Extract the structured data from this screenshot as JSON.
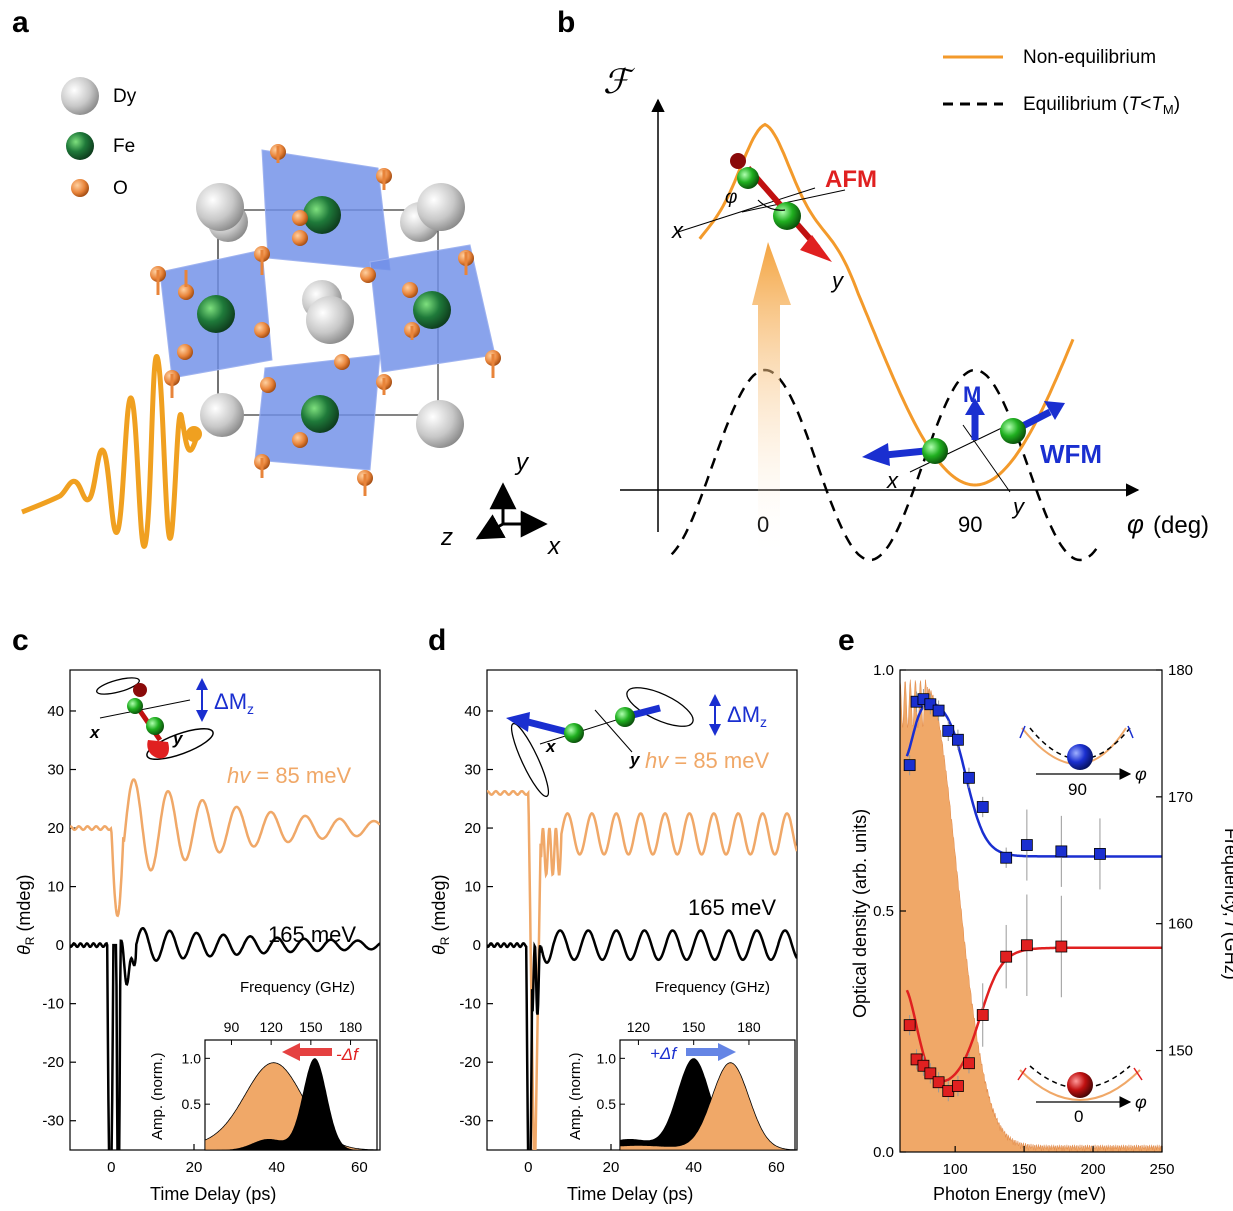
{
  "panel_labels": {
    "a": "a",
    "b": "b",
    "c": "c",
    "d": "d",
    "e": "e"
  },
  "panel_a": {
    "legend": [
      {
        "label": "Dy",
        "color": "#c8c8c8"
      },
      {
        "label": "Fe",
        "color": "#1f6b3a"
      },
      {
        "label": "O",
        "color": "#e8843a"
      }
    ],
    "axes_labels": {
      "y": "y",
      "z": "z",
      "x": "x"
    },
    "pulse_color": "#f0a020",
    "octahedron_color": "#6f8fe8"
  },
  "panel_b": {
    "y_symbol": "ℱ",
    "x_label_var": "φ",
    "x_label_unit": "(deg)",
    "x_ticks": [
      "0",
      "90"
    ],
    "legend_noneq": "Non-equilibrium",
    "legend_eq_prefix": "Equilibrium (",
    "legend_eq_T": "T",
    "legend_eq_lt": "<",
    "legend_eq_TM": "T",
    "legend_eq_sub": "M",
    "legend_eq_suffix": ")",
    "afm_label": "AFM",
    "wfm_label": "WFM",
    "m_label": "M",
    "phi_symbol": "φ",
    "x_axis_letter": "x",
    "y_axis_letter": "y",
    "noneq_color": "#f39a2b",
    "afm_color": "#e02020",
    "wfm_color": "#1a2fd0"
  },
  "panel_c": {
    "y_axis_label": "θ",
    "y_axis_sub": "R",
    "y_axis_unit": " (mdeg)",
    "x_axis_label": "Time Delay (ps)",
    "y_ticks": [
      "40",
      "30",
      "20",
      "10",
      "0",
      "-10",
      "-20",
      "-30"
    ],
    "x_ticks": [
      "0",
      "20",
      "40",
      "60"
    ],
    "label_85_prefix": "hv",
    "label_85_value": " = 85 meV",
    "label_165": "165 meV",
    "dM_label": "ΔM",
    "dM_sub": "z",
    "x_letter": "x",
    "y_letter": "y",
    "inset": {
      "title": "Frequency (GHz)",
      "x_ticks": [
        "90",
        "120",
        "150",
        "180"
      ],
      "y_label": "Amp. (norm.)",
      "y_ticks": [
        "1.0",
        "0.5"
      ],
      "shift_label": "-Δf"
    }
  },
  "panel_d": {
    "y_axis_label": "θ",
    "y_axis_sub": "R",
    "y_axis_unit": " (mdeg)",
    "x_axis_label": "Time Delay (ps)",
    "y_ticks": [
      "40",
      "30",
      "20",
      "10",
      "0",
      "-10",
      "-20",
      "-30"
    ],
    "x_ticks": [
      "0",
      "20",
      "40",
      "60"
    ],
    "label_85_prefix": "hv",
    "label_85_value": " = 85 meV",
    "label_165": "165 meV",
    "dM_label": "ΔM",
    "dM_sub": "z",
    "x_letter": "x",
    "y_letter": "y",
    "inset": {
      "title": "Frequency (GHz)",
      "x_ticks": [
        "120",
        "150",
        "180"
      ],
      "y_label": "Amp. (norm.)",
      "y_ticks": [
        "1.0",
        "0.5"
      ],
      "shift_label": "+Δf"
    }
  },
  "panel_e": {
    "x_axis_label": "Photon Energy (meV)",
    "y_left_label": "Optical density (arb. units)",
    "y_right_label_prefix": "Frequency, ",
    "y_right_label_var": "f",
    "y_right_label_unit": " (GHz)",
    "x_ticks": [
      "100",
      "150",
      "200",
      "250"
    ],
    "y_left_ticks": [
      "1.0",
      "0.5",
      "0.0"
    ],
    "y_right_ticks": [
      "180",
      "170",
      "160",
      "150"
    ],
    "inset_top_tick": "90",
    "inset_bottom_tick": "0",
    "phi_symbol": "φ",
    "absorption_color": "#f0a868",
    "blue_color": "#1a2fd0",
    "red_color": "#e02020"
  },
  "chart_data": [
    {
      "panel": "c",
      "type": "line",
      "xlabel": "Time Delay (ps)",
      "ylabel": "θR (mdeg)",
      "xlim": [
        -10,
        65
      ],
      "ylim": [
        -35,
        47
      ],
      "series": [
        {
          "name": "hv = 85 meV",
          "description": "damped oscillation offset at +20 mdeg, dip to ~5 at 2 ps, peak ~29 at 10 ps, period ~8.3 ps (~120 GHz)",
          "offset": 20,
          "amplitude": 9,
          "period_ps": 8.3,
          "decay_ps": 30
        },
        {
          "name": "165 meV",
          "description": "offset 0 mdeg, sharp dip to below -35 at ~1 ps, oscillation amplitude ~3, period ~6.5 ps (~153 GHz)",
          "offset": 0,
          "amplitude": 3,
          "period_ps": 6.5,
          "decay_ps": 40
        }
      ]
    },
    {
      "panel": "c-inset",
      "type": "area",
      "xlabel": "Frequency (GHz)",
      "ylabel": "Amp. (norm.)",
      "xlim": [
        70,
        200
      ],
      "ylim": [
        0,
        1.2
      ],
      "series": [
        {
          "name": "85 meV spectrum",
          "peak_x": 122,
          "peak_y": 1.0
        },
        {
          "name": "165 meV spectrum",
          "peak_x": 153,
          "peak_y": 1.0
        }
      ]
    },
    {
      "panel": "d",
      "type": "line",
      "xlabel": "Time Delay (ps)",
      "ylabel": "θR (mdeg)",
      "xlim": [
        -10,
        65
      ],
      "ylim": [
        -35,
        47
      ],
      "series": [
        {
          "name": "hv = 85 meV",
          "description": "starts at ~26 mdeg, drops below -35 at ~2 ps, then oscillates around ~19 with amplitude ~3.5, period ~5.9 ps (~170 GHz)",
          "offset": 19,
          "amplitude": 3.5,
          "period_ps": 5.9
        },
        {
          "name": "165 meV",
          "description": "offset ~0, sharp dip at ~1 ps, oscillation amplitude ~2.5, period ~6.8 ps (~147 GHz)",
          "offset": 0,
          "amplitude": 2.5,
          "period_ps": 6.8
        }
      ]
    },
    {
      "panel": "d-inset",
      "type": "area",
      "xlabel": "Frequency (GHz)",
      "ylabel": "Amp. (norm.)",
      "xlim": [
        110,
        205
      ],
      "ylim": [
        0,
        1.2
      ],
      "series": [
        {
          "name": "165 meV spectrum",
          "peak_x": 150,
          "peak_y": 1.0
        },
        {
          "name": "85 meV spectrum",
          "peak_x": 170,
          "peak_y": 1.0
        }
      ]
    },
    {
      "panel": "e",
      "type": "scatter",
      "xlabel": "Photon Energy (meV)",
      "ylabel": "Optical density (arb. units)",
      "y2label": "Frequency, f (GHz)",
      "xlim": [
        60,
        250
      ],
      "ylim": [
        0,
        1.0
      ],
      "y2lim": [
        142,
        180
      ],
      "series": [
        {
          "name": "blue",
          "x": [
            67,
            72,
            77,
            82,
            88,
            95,
            102,
            110,
            120,
            137,
            152,
            177,
            205
          ],
          "y": [
            172.5,
            177.5,
            177.7,
            177.3,
            176.8,
            175.2,
            174.5,
            171.5,
            169.2,
            165.2,
            166.2,
            165.7,
            165.5
          ]
        },
        {
          "name": "red",
          "x": [
            67,
            72,
            77,
            82,
            88,
            95,
            102,
            110,
            120,
            137,
            152,
            177
          ],
          "y": [
            152.0,
            149.3,
            148.8,
            148.2,
            147.5,
            146.8,
            147.2,
            149.0,
            152.8,
            157.4,
            158.3,
            158.2
          ]
        },
        {
          "name": "absorption",
          "description": "optical density shading, ~1.0 near 65-80 meV decaying to ~0 by ~140 meV"
        }
      ]
    }
  ]
}
